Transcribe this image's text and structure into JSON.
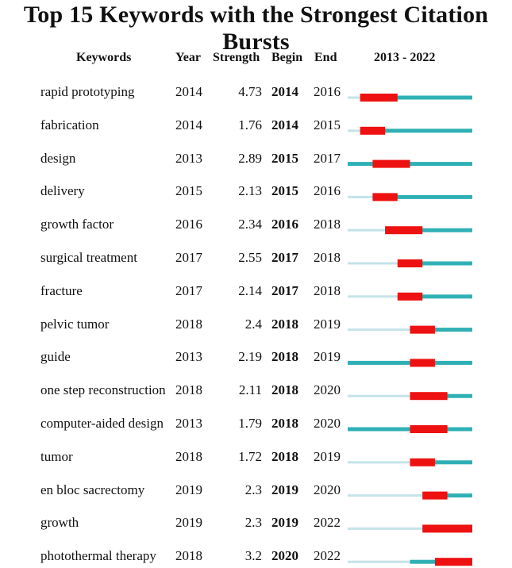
{
  "title": "Top 15 Keywords with the Strongest Citation Bursts",
  "columns": {
    "keywords": "Keywords",
    "year": "Year",
    "strength": "Strength",
    "begin": "Begin",
    "end": "End",
    "range": "2013 - 2022"
  },
  "colors": {
    "burst": "#ee1111",
    "active": "#2fb0b5",
    "inactive": "#c5e3e8"
  },
  "chart_data": {
    "type": "table",
    "title": "Top 15 Keywords with the Strongest Citation Bursts",
    "timeline_start": 2013,
    "timeline_end": 2022,
    "rows": [
      {
        "keyword": "rapid prototyping",
        "year": 2014,
        "strength": "4.73",
        "begin": 2014,
        "end": 2016
      },
      {
        "keyword": "fabrication",
        "year": 2014,
        "strength": "1.76",
        "begin": 2014,
        "end": 2015
      },
      {
        "keyword": "design",
        "year": 2013,
        "strength": "2.89",
        "begin": 2015,
        "end": 2017
      },
      {
        "keyword": "delivery",
        "year": 2015,
        "strength": "2.13",
        "begin": 2015,
        "end": 2016
      },
      {
        "keyword": "growth factor",
        "year": 2016,
        "strength": "2.34",
        "begin": 2016,
        "end": 2018
      },
      {
        "keyword": "surgical treatment",
        "year": 2017,
        "strength": "2.55",
        "begin": 2017,
        "end": 2018
      },
      {
        "keyword": "fracture",
        "year": 2017,
        "strength": "2.14",
        "begin": 2017,
        "end": 2018
      },
      {
        "keyword": "pelvic tumor",
        "year": 2018,
        "strength": "2.4",
        "begin": 2018,
        "end": 2019
      },
      {
        "keyword": "guide",
        "year": 2013,
        "strength": "2.19",
        "begin": 2018,
        "end": 2019
      },
      {
        "keyword": "one step reconstruction",
        "year": 2018,
        "strength": "2.11",
        "begin": 2018,
        "end": 2020
      },
      {
        "keyword": "computer-aided design",
        "year": 2013,
        "strength": "1.79",
        "begin": 2018,
        "end": 2020
      },
      {
        "keyword": "tumor",
        "year": 2018,
        "strength": "1.72",
        "begin": 2018,
        "end": 2019
      },
      {
        "keyword": "en bloc sacrectomy",
        "year": 2019,
        "strength": "2.3",
        "begin": 2019,
        "end": 2020
      },
      {
        "keyword": "growth",
        "year": 2019,
        "strength": "2.3",
        "begin": 2019,
        "end": 2022
      },
      {
        "keyword": "photothermal therapy",
        "year": 2018,
        "strength": "3.2",
        "begin": 2020,
        "end": 2022
      }
    ]
  }
}
